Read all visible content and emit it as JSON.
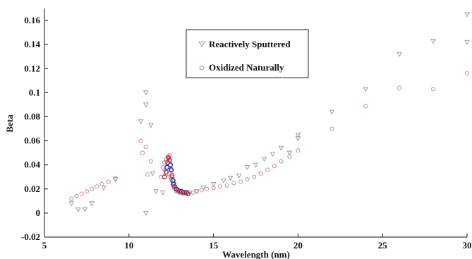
{
  "chart_data": {
    "type": "scatter",
    "xlabel": "Wavelength (nm)",
    "ylabel": "Beta",
    "xlim": [
      5,
      30
    ],
    "ylim": [
      -0.02,
      0.17
    ],
    "xticks": [
      5,
      10,
      15,
      20,
      25,
      30
    ],
    "yticks": [
      -0.02,
      0,
      0.02,
      0.04,
      0.06,
      0.08,
      0.1,
      0.12,
      0.14,
      0.16
    ],
    "xtick_labels": [
      "5",
      "10",
      "15",
      "20",
      "25",
      "30"
    ],
    "ytick_labels": [
      "-0.02",
      "0",
      "0.02",
      "0.04",
      "0.06",
      "0.08",
      "0.1",
      "0.12",
      "0.14",
      "0.16"
    ],
    "grid": false,
    "legend_position": "top-center",
    "series": [
      {
        "name": "Reactively Sputtered",
        "marker": "triangle-down",
        "color": "#a09aa8",
        "x": [
          6.6,
          7.0,
          7.4,
          7.8,
          8.5,
          9.2,
          10.7,
          11.0,
          11.0,
          11.0,
          11.3,
          11.4,
          11.6,
          12.0,
          12.1,
          12.2,
          12.3,
          12.4,
          12.5,
          12.6,
          12.8,
          13.2,
          13.6,
          14.0,
          14.4,
          15.0,
          15.6,
          16.0,
          16.5,
          17.0,
          17.5,
          18.0,
          18.5,
          19.0,
          19.5,
          20.0,
          20.0,
          22.0,
          24.0,
          26.0,
          28.0,
          30.0,
          30.0
        ],
        "y": [
          0.008,
          0.003,
          0.003,
          0.008,
          0.021,
          0.028,
          0.076,
          0.1,
          0.09,
          0.0,
          0.073,
          0.033,
          0.018,
          0.017,
          0.035,
          0.042,
          0.045,
          0.03,
          0.027,
          0.022,
          0.019,
          0.017,
          0.017,
          0.018,
          0.021,
          0.024,
          0.027,
          0.029,
          0.031,
          0.038,
          0.04,
          0.045,
          0.049,
          0.054,
          0.05,
          0.065,
          0.062,
          0.084,
          0.103,
          0.132,
          0.143,
          0.165,
          0.142
        ]
      },
      {
        "name": "Oxidized Naturally",
        "marker": "circle",
        "color": "#c58fa0",
        "x": [
          6.6,
          6.9,
          7.2,
          7.5,
          7.8,
          8.1,
          8.4,
          8.8,
          9.2,
          10.7,
          10.8,
          11.0,
          11.1,
          11.3,
          11.9,
          12.0,
          12.1,
          12.2,
          12.3,
          12.4,
          12.5,
          12.55,
          12.6,
          12.7,
          12.8,
          13.0,
          13.2,
          13.5,
          13.8,
          14.0,
          14.3,
          14.6,
          15.0,
          15.4,
          15.8,
          16.2,
          16.6,
          17.0,
          17.4,
          17.8,
          18.2,
          18.6,
          19.0,
          19.5,
          20.0,
          22.0,
          24.0,
          26.0,
          28.0,
          30.0
        ],
        "y": [
          0.012,
          0.014,
          0.016,
          0.018,
          0.02,
          0.022,
          0.024,
          0.026,
          0.029,
          0.06,
          0.05,
          0.055,
          0.032,
          0.043,
          0.03,
          0.038,
          0.042,
          0.045,
          0.047,
          0.048,
          0.035,
          0.03,
          0.025,
          0.02,
          0.018,
          0.017,
          0.017,
          0.016,
          0.017,
          0.018,
          0.019,
          0.02,
          0.021,
          0.022,
          0.023,
          0.025,
          0.026,
          0.028,
          0.03,
          0.033,
          0.036,
          0.039,
          0.043,
          0.047,
          0.052,
          0.07,
          0.089,
          0.104,
          0.103,
          0.116
        ]
      }
    ],
    "dense_points": {
      "x": [
        12.1,
        12.2,
        12.25,
        12.3,
        12.35,
        12.4,
        12.45,
        12.5,
        12.55,
        12.6,
        12.65,
        12.7,
        12.8,
        12.9,
        13.0,
        13.1,
        13.2,
        13.3,
        13.4,
        13.5
      ],
      "y": [
        0.03,
        0.034,
        0.038,
        0.042,
        0.046,
        0.044,
        0.04,
        0.036,
        0.031,
        0.027,
        0.024,
        0.022,
        0.02,
        0.019,
        0.018,
        0.018,
        0.017,
        0.017,
        0.017,
        0.016
      ],
      "colors": [
        "#cc2f3a",
        "#cc2f3a",
        "#2b3fb5",
        "#cc2f3a",
        "#cc2f3a",
        "#cc2f3a",
        "#2b3fb5",
        "#2b3fb5",
        "#cc2f3a",
        "#2b3fb5",
        "#3a2fa8",
        "#cc2f3a",
        "#2b3fb5",
        "#cc2f3a",
        "#cc2f3a",
        "#2b3fb5",
        "#cc2f3a",
        "#cc2f3a",
        "#2b3fb5",
        "#cc2f3a"
      ]
    }
  }
}
